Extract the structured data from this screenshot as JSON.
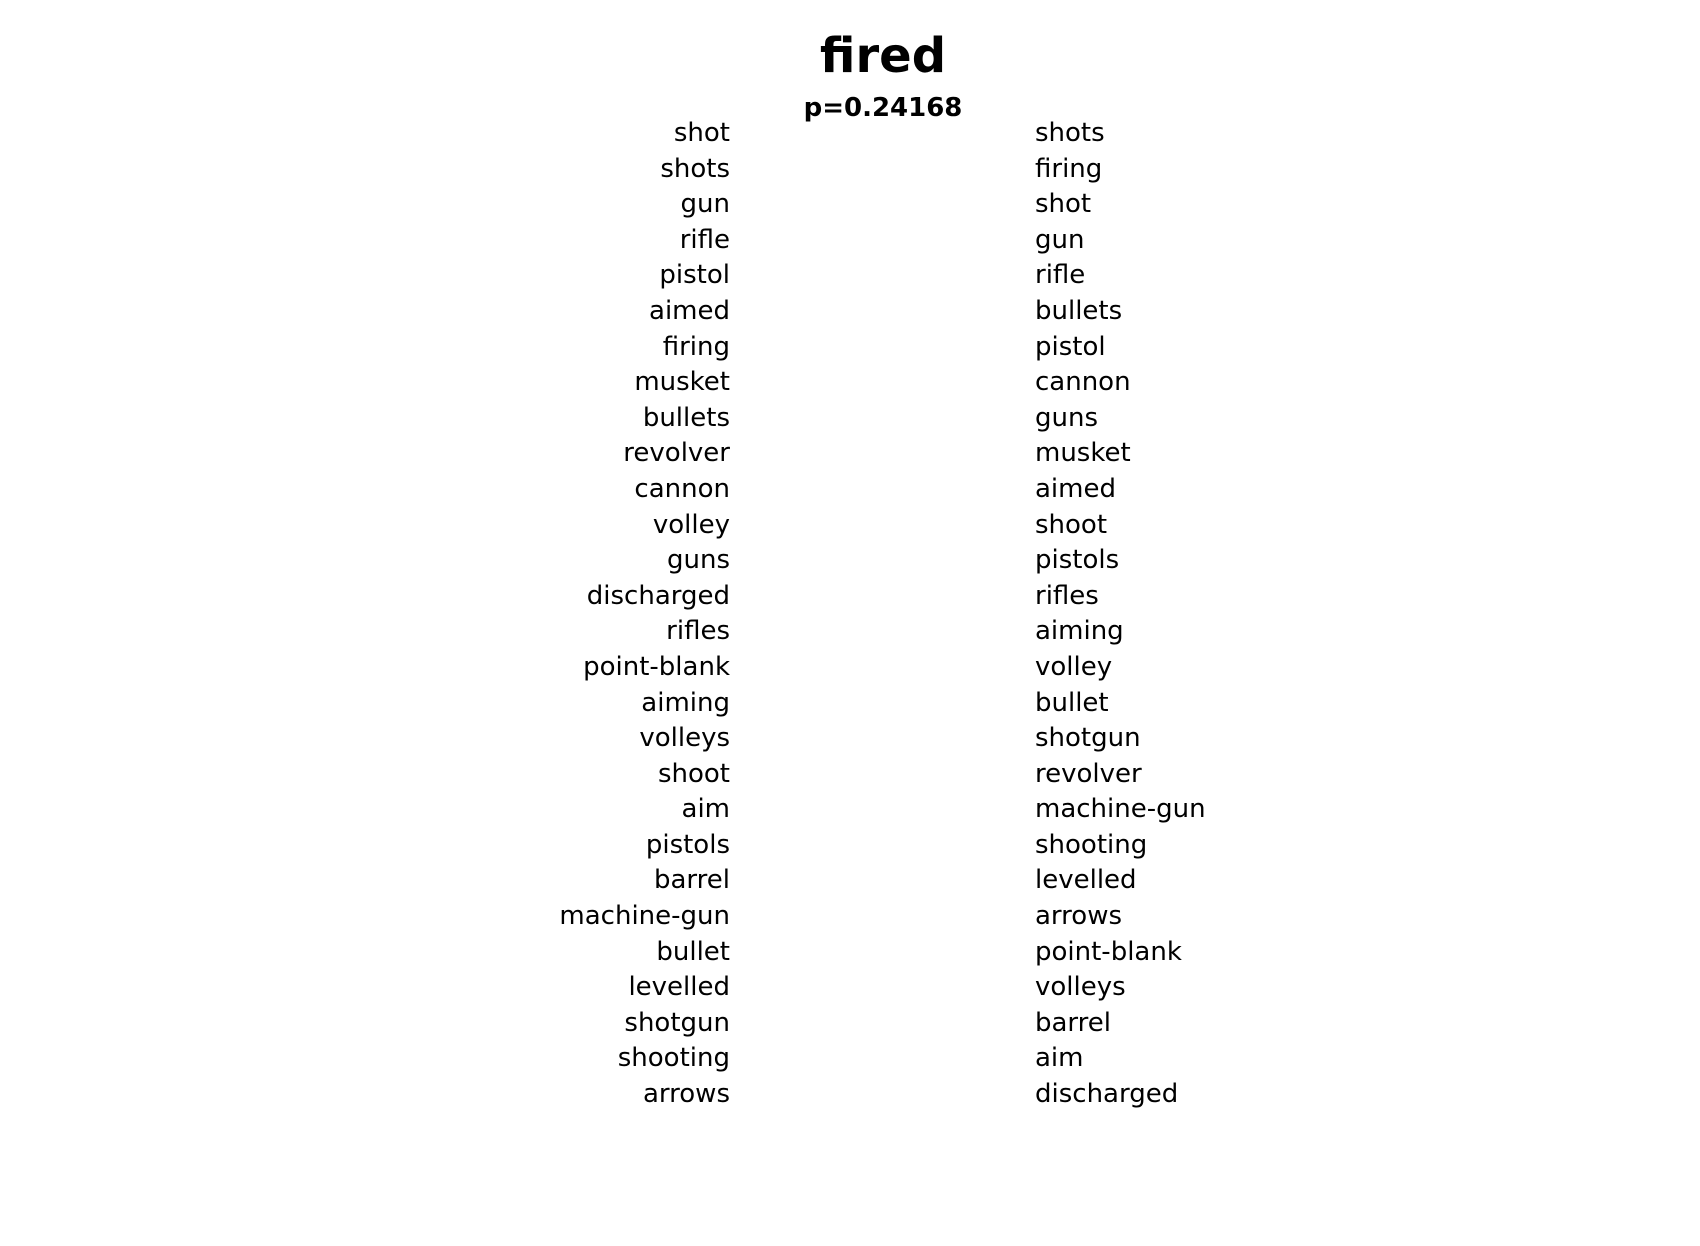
{
  "title": "fired",
  "subtitle": "p=0.24168",
  "left_column": [
    "shot",
    "shots",
    "gun",
    "rifle",
    "pistol",
    "aimed",
    "firing",
    "musket",
    "bullets",
    "revolver",
    "cannon",
    "volley",
    "guns",
    "discharged",
    "rifles",
    "point-blank",
    "aiming",
    "volleys",
    "shoot",
    "aim",
    "pistols",
    "barrel",
    "machine-gun",
    "bullet",
    "levelled",
    "shotgun",
    "shooting",
    "arrows"
  ],
  "right_column": [
    "shots",
    "firing",
    "shot",
    "gun",
    "rifle",
    "bullets",
    "pistol",
    "cannon",
    "guns",
    "musket",
    "aimed",
    "shoot",
    "pistols",
    "rifles",
    "aiming",
    "volley",
    "bullet",
    "shotgun",
    "revolver",
    "machine-gun",
    "shooting",
    "levelled",
    "arrows",
    "point-blank",
    "volleys",
    "barrel",
    "aim",
    "discharged"
  ]
}
